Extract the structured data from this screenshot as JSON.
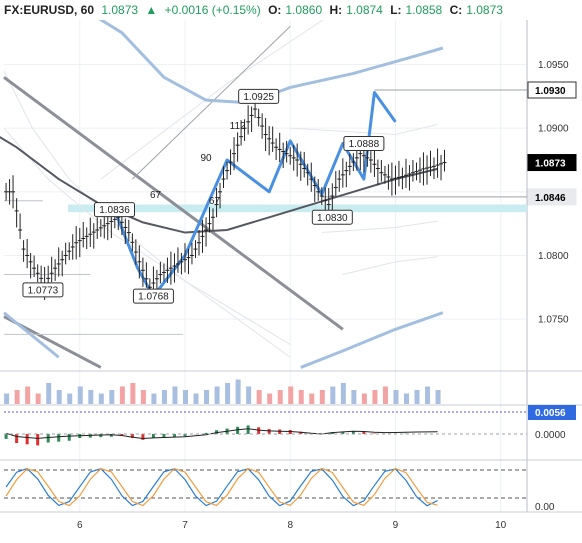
{
  "header": {
    "symbol": "FX:EURUSD, 60",
    "last": "1.0873",
    "change": "+0.0016 (+0.15%)",
    "open_label": "O:",
    "open": "1.0860",
    "high_label": "H:",
    "high": "1.0874",
    "low_label": "L:",
    "low": "1.0858",
    "close_label": "C:",
    "close": "1.0873"
  },
  "colors": {
    "up": "#1f9e5e",
    "price_tag_bg": "#000000",
    "volume_up": "#a9bfe0",
    "volume_down": "#f2a3a3",
    "blue_band": "#a3bfe0",
    "zigzag": "#4a90e2",
    "support_band": "#c8ecf0",
    "macd_up": "#2e8b57",
    "macd_down": "#e0302e",
    "macd_tag_bg": "#2f6ae0"
  },
  "chart_data": {
    "type": "candlestick",
    "symbol": "FX:EURUSD",
    "timeframe": "60",
    "ylim": [
      1.071,
      1.0985
    ],
    "price_axis": [
      "1.0950",
      "1.0900",
      "1.0850",
      "1.0800",
      "1.0750"
    ],
    "x_axis": [
      "6",
      "7",
      "8",
      "9",
      "10"
    ],
    "price_tags": [
      {
        "value": "1.0930",
        "style": "outline"
      },
      {
        "value": "1.0873",
        "style": "black"
      },
      {
        "value": "1.0846",
        "style": "light"
      }
    ],
    "annotations": [
      {
        "text": "1.0925",
        "x": 7.7,
        "y": 1.0925
      },
      {
        "text": "1.0888",
        "x": 8.7,
        "y": 1.0888
      },
      {
        "text": "1.0836",
        "x": 6.33,
        "y": 1.0836
      },
      {
        "text": "1.0830",
        "x": 8.4,
        "y": 1.083
      },
      {
        "text": "1.0773",
        "x": 5.65,
        "y": 1.0773
      },
      {
        "text": "1.0768",
        "x": 6.7,
        "y": 1.0768
      },
      {
        "text": "112",
        "x": 7.5,
        "y": 1.0902
      },
      {
        "text": "90",
        "x": 7.2,
        "y": 1.0877
      },
      {
        "text": "67",
        "x": 6.72,
        "y": 1.0848
      },
      {
        "text": "67",
        "x": 7.28,
        "y": 1.0843
      }
    ],
    "series": [
      {
        "name": "close",
        "x": [
          5.3,
          5.4,
          5.5,
          5.6,
          5.7,
          5.8,
          5.9,
          6.0,
          6.1,
          6.2,
          6.3,
          6.4,
          6.5,
          6.6,
          6.7,
          6.8,
          6.9,
          7.0,
          7.1,
          7.2,
          7.3,
          7.4,
          7.5,
          7.6,
          7.7,
          7.8,
          7.9,
          8.0,
          8.1,
          8.2,
          8.3,
          8.4,
          8.5,
          8.6,
          8.7,
          8.8,
          8.9,
          9.0,
          9.1,
          9.2,
          9.3,
          9.4
        ],
        "y": [
          1.085,
          1.0805,
          1.079,
          1.0778,
          1.079,
          1.08,
          1.081,
          1.0815,
          1.082,
          1.0825,
          1.083,
          1.0818,
          1.0795,
          1.0775,
          1.0785,
          1.079,
          1.0795,
          1.08,
          1.0815,
          1.083,
          1.086,
          1.088,
          1.09,
          1.0915,
          1.0895,
          1.0885,
          1.088,
          1.0875,
          1.0865,
          1.085,
          1.084,
          1.086,
          1.087,
          1.088,
          1.0875,
          1.0865,
          1.086,
          1.0862,
          1.0865,
          1.0868,
          1.087,
          1.0873
        ]
      },
      {
        "name": "zigzag",
        "x": [
          6.33,
          6.55,
          6.7,
          7.0,
          7.4,
          7.8,
          8.0,
          8.3,
          8.5,
          8.7,
          8.8,
          9.0
        ],
        "y": [
          1.0836,
          1.079,
          1.0768,
          1.08,
          1.0875,
          1.085,
          1.089,
          1.0848,
          1.0888,
          1.086,
          1.0928,
          1.0905
        ]
      },
      {
        "name": "moving-average",
        "x": [
          5.0,
          5.4,
          5.8,
          6.2,
          6.6,
          7.0,
          7.4,
          7.8,
          8.2,
          8.6,
          9.0,
          9.4
        ],
        "y": [
          1.0905,
          1.0885,
          1.086,
          1.084,
          1.0826,
          1.0818,
          1.082,
          1.083,
          1.084,
          1.085,
          1.086,
          1.0868
        ]
      }
    ],
    "volume": [
      3,
      4,
      5,
      3,
      6,
      4,
      3,
      5,
      4,
      3,
      4,
      5,
      6,
      4,
      3,
      4,
      5,
      4,
      3,
      4,
      5,
      6,
      7,
      5,
      4,
      3,
      4,
      5,
      4,
      3,
      4,
      5,
      6,
      4,
      3,
      4,
      5,
      4,
      3,
      4,
      5,
      4
    ],
    "macd_tags": [
      {
        "value": "0.0056",
        "style": "blue"
      },
      {
        "value": "0.0000",
        "style": "plain"
      }
    ],
    "stochastic_axis": [
      "0.00"
    ]
  }
}
